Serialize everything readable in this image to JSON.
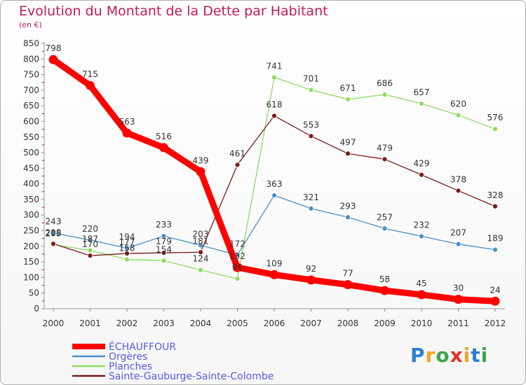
{
  "chart_data": {
    "type": "line",
    "title": "Evolution du Montant de la Dette par Habitant",
    "subtitle": "(en €)",
    "x": [
      "2000",
      "2001",
      "2002",
      "2003",
      "2004",
      "2005",
      "2006",
      "2007",
      "2008",
      "2009",
      "2010",
      "2011",
      "2012"
    ],
    "ylim": [
      0,
      850
    ],
    "yticks": [
      0,
      50,
      100,
      150,
      200,
      250,
      300,
      350,
      400,
      450,
      500,
      550,
      600,
      650,
      700,
      750,
      800,
      850
    ],
    "grid": false,
    "legend_placement": "bottom-left",
    "series": [
      {
        "name": "ÉCHAUFFOUR",
        "color": "#ff0000",
        "values": [
          798,
          715,
          563,
          516,
          439,
          132,
          109,
          92,
          77,
          58,
          45,
          30,
          24
        ]
      },
      {
        "name": "Orgères",
        "color": "#4a90c8",
        "values": [
          243,
          220,
          194,
          233,
          203,
          172,
          363,
          321,
          293,
          257,
          232,
          207,
          189
        ]
      },
      {
        "name": "Planches",
        "color": "#8fdc60",
        "values": [
          205,
          187,
          158,
          154,
          124,
          96,
          741,
          701,
          671,
          686,
          657,
          620,
          576
        ]
      },
      {
        "name": "Sainte-Gauburge-Sainte-Colombe",
        "color": "#7a1c1c",
        "values": [
          208,
          170,
          177,
          179,
          181,
          461,
          618,
          553,
          497,
          479,
          429,
          378,
          328
        ]
      }
    ]
  },
  "brand": {
    "letters": [
      "P",
      "r",
      "o",
      "x",
      "i",
      "t",
      "i"
    ],
    "colors": [
      "#2b7fd4",
      "#f5a623",
      "#3aa64a",
      "#e8302a",
      "#f5a623",
      "#2b7fd4",
      "#3aa64a"
    ]
  }
}
